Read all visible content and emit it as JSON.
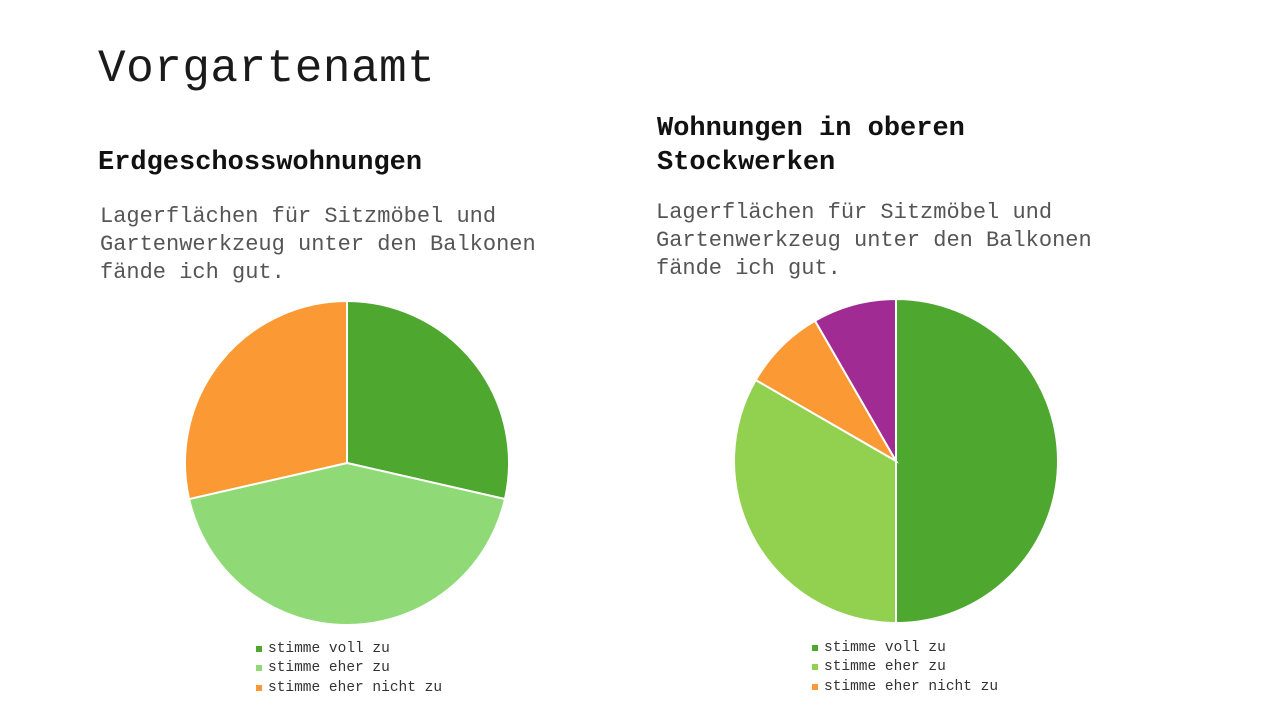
{
  "slide": {
    "title": "Vorgartenamt"
  },
  "chart_data": [
    {
      "type": "pie",
      "title": "Erdgeschosswohnungen",
      "subtitle": "Lagerflächen für Sitzmöbel und Gartenwerkzeug unter den Balkonen fände ich gut.",
      "categories": [
        "stimme voll zu",
        "stimme eher zu",
        "stimme eher nicht zu"
      ],
      "values": [
        2,
        3,
        2
      ],
      "colors": [
        "#4ea72e",
        "#8fda77",
        "#fb9a34"
      ],
      "legend_position": "bottom"
    },
    {
      "type": "pie",
      "title": "Wohnungen in oberen Stockwerken",
      "subtitle": "Lagerflächen für Sitzmöbel und Gartenwerkzeug unter den Balkonen fände ich gut.",
      "categories": [
        "stimme voll zu",
        "stimme eher zu",
        "stimme eher nicht zu",
        ""
      ],
      "values": [
        6,
        4,
        1,
        1
      ],
      "colors": [
        "#4ea72e",
        "#92d050",
        "#fb9a34",
        "#a02b93"
      ],
      "legend_position": "bottom"
    }
  ]
}
